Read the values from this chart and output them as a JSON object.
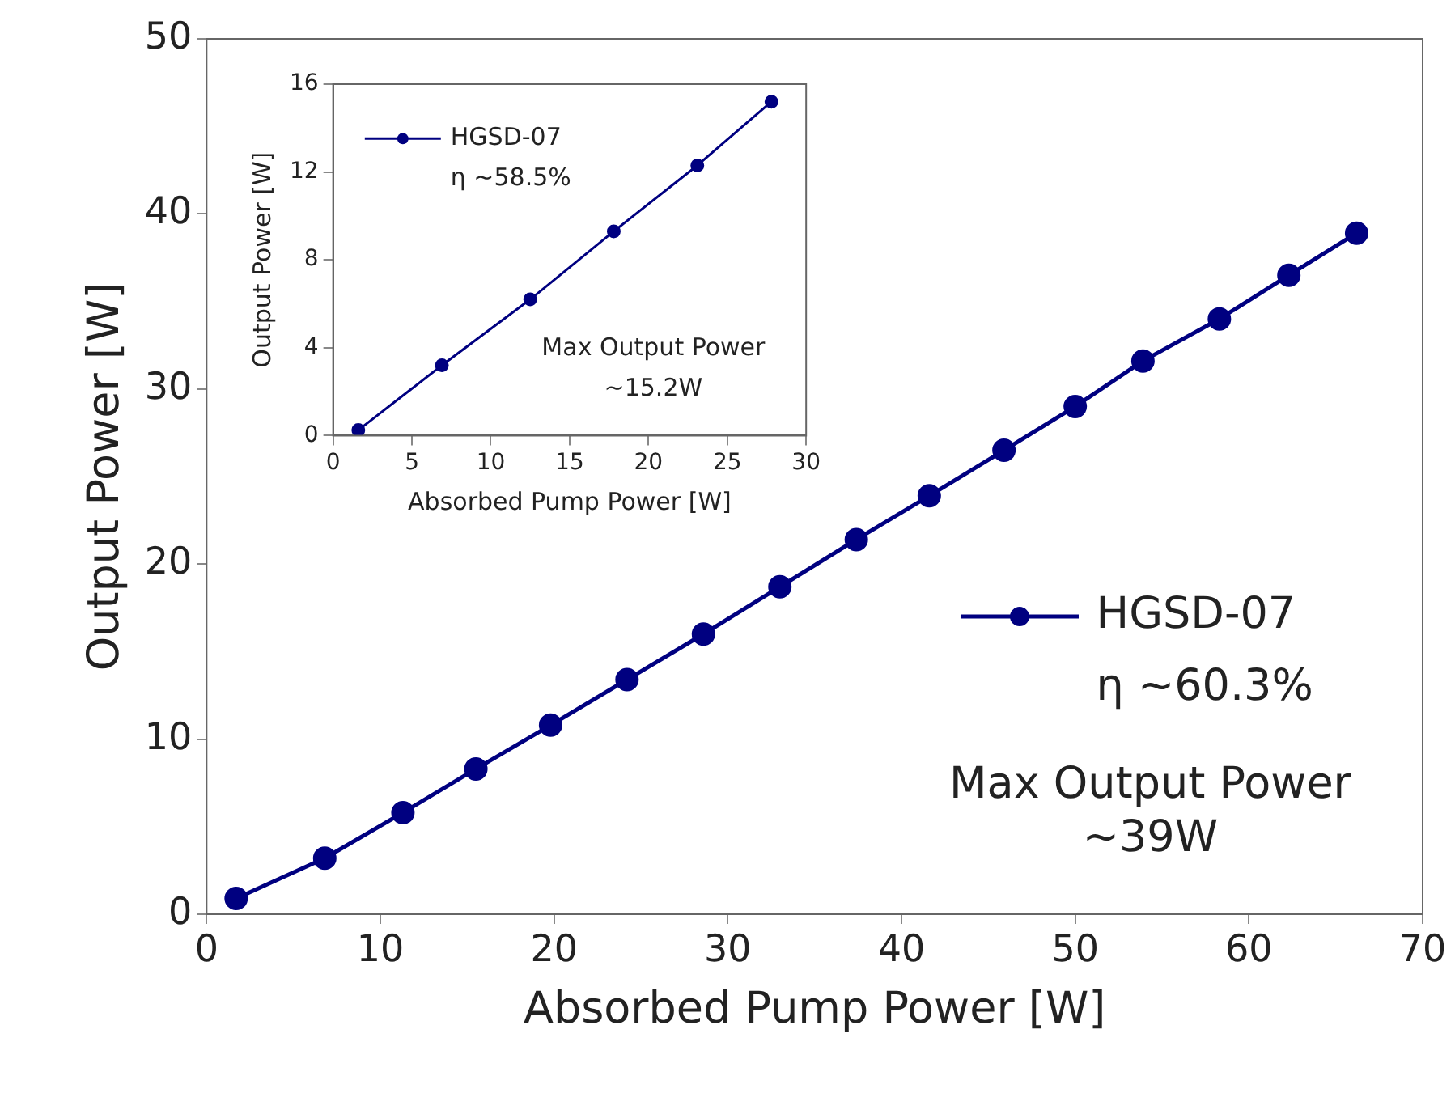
{
  "chart_data": [
    {
      "type": "line",
      "xlabel": "Absorbed Pump Power [W]",
      "ylabel": "Output Power [W]",
      "xlim": [
        0,
        70
      ],
      "xticks": [
        0,
        10,
        20,
        30,
        40,
        50,
        60,
        70
      ],
      "ylim": [
        0,
        50
      ],
      "yticks": [
        0,
        10,
        20,
        30,
        40,
        50
      ],
      "grid": false,
      "legend": "right",
      "marker": "circle",
      "line_style": "solid",
      "series": [
        {
          "name": "HGSD-07",
          "color": "#000080",
          "x": [
            1.7,
            6.8,
            11.3,
            15.5,
            19.8,
            24.2,
            28.6,
            33.0,
            37.4,
            41.6,
            45.9,
            50.0,
            53.9,
            58.3,
            62.3,
            66.2
          ],
          "values": [
            0.9,
            3.2,
            5.8,
            8.3,
            10.8,
            13.4,
            16.0,
            18.7,
            21.4,
            23.9,
            26.5,
            29.0,
            31.6,
            34.0,
            36.5,
            38.9
          ]
        }
      ],
      "annotations": [
        "η ~60.3%",
        "Max Output Power",
        "~39W"
      ]
    },
    {
      "type": "line",
      "xlabel": "Absorbed Pump Power [W]",
      "ylabel": "Output Power [W]",
      "xlim": [
        0,
        30
      ],
      "xticks": [
        0,
        5,
        10,
        15,
        20,
        25,
        30
      ],
      "ylim": [
        0,
        16
      ],
      "yticks": [
        0,
        4,
        8,
        12,
        16
      ],
      "grid": false,
      "legend": "top left",
      "marker": "circle",
      "line_style": "solid",
      "series": [
        {
          "name": "HGSD-07",
          "color": "#000080",
          "x": [
            1.6,
            6.9,
            12.5,
            17.8,
            23.1,
            27.8
          ],
          "values": [
            0.25,
            3.2,
            6.2,
            9.3,
            12.3,
            15.2
          ]
        }
      ],
      "annotations": [
        "η ~58.5%",
        "Max Output Power",
        "~15.2W"
      ]
    }
  ]
}
